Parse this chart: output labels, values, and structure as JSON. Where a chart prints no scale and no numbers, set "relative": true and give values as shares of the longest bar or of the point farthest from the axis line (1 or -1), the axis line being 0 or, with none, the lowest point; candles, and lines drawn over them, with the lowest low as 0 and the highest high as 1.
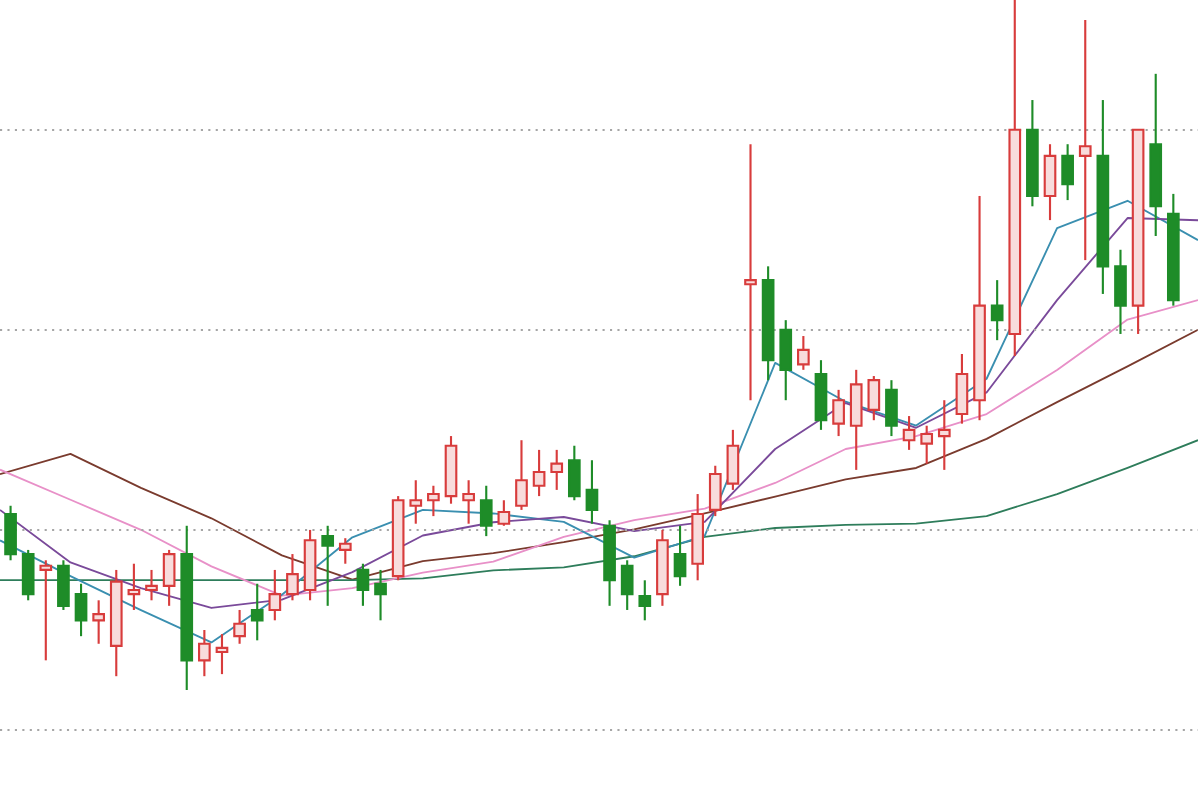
{
  "chart_data": [
    {
      "type": "candlestick",
      "relative": true,
      "grid": "y",
      "categories": [
        null,
        null,
        null,
        null,
        null,
        null,
        null,
        null,
        null,
        null,
        null,
        null,
        null,
        null,
        null,
        null,
        null,
        null,
        null,
        null,
        null,
        null,
        null,
        null,
        null,
        null,
        null,
        null,
        null,
        null,
        null,
        null,
        null,
        null,
        null,
        null,
        null,
        null,
        null,
        null,
        null,
        null,
        null,
        null,
        null,
        null,
        null,
        null,
        null,
        null,
        null,
        null,
        null,
        null,
        null,
        null,
        null,
        null,
        null,
        null,
        null,
        null,
        null,
        null,
        null,
        null,
        null
      ],
      "ohlc": [
        [
          0.255,
          0.267,
          0.188,
          0.197
        ],
        [
          0.197,
          0.203,
          0.13,
          0.139
        ],
        [
          0.174,
          0.188,
          0.043,
          0.18
        ],
        [
          0.18,
          0.188,
          0.116,
          0.122
        ],
        [
          0.139,
          0.154,
          0.078,
          0.101
        ],
        [
          0.101,
          0.13,
          0.067,
          0.11
        ],
        [
          0.064,
          0.174,
          0.02,
          0.157
        ],
        [
          0.139,
          0.183,
          0.116,
          0.145
        ],
        [
          0.145,
          0.174,
          0.13,
          0.151
        ],
        [
          0.151,
          0.203,
          0.122,
          0.197
        ],
        [
          0.197,
          0.238,
          0,
          0.043
        ],
        [
          0.043,
          0.087,
          0.02,
          0.067
        ],
        [
          0.055,
          0.081,
          0.023,
          0.061
        ],
        [
          0.078,
          0.116,
          0.067,
          0.096
        ],
        [
          0.116,
          0.154,
          0.072,
          0.101
        ],
        [
          0.116,
          0.174,
          0.101,
          0.139
        ],
        [
          0.139,
          0.197,
          0.13,
          0.168
        ],
        [
          0.145,
          0.232,
          0.13,
          0.217
        ],
        [
          0.223,
          0.238,
          0.122,
          0.209
        ],
        [
          0.203,
          0.22,
          0.183,
          0.212
        ],
        [
          0.174,
          0.183,
          0.122,
          0.145
        ],
        [
          0.154,
          0.174,
          0.101,
          0.139
        ],
        [
          0.165,
          0.281,
          0.159,
          0.275
        ],
        [
          0.267,
          0.304,
          0.241,
          0.275
        ],
        [
          0.275,
          0.296,
          0.252,
          0.284
        ],
        [
          0.281,
          0.368,
          0.27,
          0.354
        ],
        [
          0.275,
          0.304,
          0.241,
          0.284
        ],
        [
          0.275,
          0.296,
          0.223,
          0.238
        ],
        [
          0.241,
          0.275,
          0.238,
          0.258
        ],
        [
          0.267,
          0.362,
          0.261,
          0.304
        ],
        [
          0.296,
          0.348,
          0.281,
          0.316
        ],
        [
          0.316,
          0.348,
          0.29,
          0.328
        ],
        [
          0.333,
          0.354,
          0.275,
          0.281
        ],
        [
          0.29,
          0.333,
          0.241,
          0.261
        ],
        [
          0.238,
          0.246,
          0.122,
          0.159
        ],
        [
          0.18,
          0.188,
          0.116,
          0.139
        ],
        [
          0.136,
          0.159,
          0.101,
          0.122
        ],
        [
          0.139,
          0.232,
          0.122,
          0.217
        ],
        [
          0.197,
          0.238,
          0.151,
          0.165
        ],
        [
          0.183,
          0.284,
          0.159,
          0.255
        ],
        [
          0.261,
          0.325,
          0.252,
          0.313
        ],
        [
          0.299,
          0.377,
          0.29,
          0.354
        ],
        [
          0.588,
          0.791,
          0.42,
          0.594
        ],
        [
          0.594,
          0.614,
          0.449,
          0.478
        ],
        [
          0.522,
          0.536,
          0.42,
          0.464
        ],
        [
          0.472,
          0.513,
          0.464,
          0.493
        ],
        [
          0.458,
          0.478,
          0.377,
          0.391
        ],
        [
          0.386,
          0.435,
          0.368,
          0.42
        ],
        [
          0.383,
          0.464,
          0.319,
          0.443
        ],
        [
          0.406,
          0.455,
          0.391,
          0.449
        ],
        [
          0.435,
          0.449,
          0.368,
          0.383
        ],
        [
          0.362,
          0.397,
          0.348,
          0.377
        ],
        [
          0.357,
          0.383,
          0.328,
          0.371
        ],
        [
          0.368,
          0.42,
          0.319,
          0.377
        ],
        [
          0.4,
          0.487,
          0.386,
          0.458
        ],
        [
          0.42,
          0.716,
          0.391,
          0.557
        ],
        [
          0.557,
          0.594,
          0.507,
          0.536
        ],
        [
          0.516,
          1,
          0.484,
          0.812
        ],
        [
          0.812,
          0.855,
          0.701,
          0.716
        ],
        [
          0.716,
          0.791,
          0.681,
          0.774
        ],
        [
          0.774,
          0.791,
          0.71,
          0.733
        ],
        [
          0.774,
          0.971,
          0.623,
          0.788
        ],
        [
          0.774,
          0.855,
          0.574,
          0.614
        ],
        [
          0.614,
          0.638,
          0.516,
          0.557
        ],
        [
          0.557,
          0.812,
          0.516,
          0.812
        ],
        [
          0.791,
          0.893,
          0.658,
          0.701
        ],
        [
          0.69,
          0.719,
          0.557,
          0.565
        ]
      ],
      "colors": [
        "#1e8c28",
        "#1e8c28",
        "#d83c3c",
        "#1e8c28",
        "#1e8c28",
        "#d83c3c",
        "#d83c3c",
        "#d83c3c",
        "#d83c3c",
        "#d83c3c",
        "#1e8c28",
        "#d83c3c",
        "#d83c3c",
        "#d83c3c",
        "#1e8c28",
        "#d83c3c",
        "#d83c3c",
        "#d83c3c",
        "#1e8c28",
        "#d83c3c",
        "#1e8c28",
        "#1e8c28",
        "#d83c3c",
        "#d83c3c",
        "#d83c3c",
        "#d83c3c",
        "#d83c3c",
        "#1e8c28",
        "#d83c3c",
        "#d83c3c",
        "#d83c3c",
        "#d83c3c",
        "#1e8c28",
        "#1e8c28",
        "#1e8c28",
        "#1e8c28",
        "#1e8c28",
        "#d83c3c",
        "#1e8c28",
        "#d83c3c",
        "#d83c3c",
        "#d83c3c",
        "#d83c3c",
        "#1e8c28",
        "#1e8c28",
        "#d83c3c",
        "#1e8c28",
        "#d83c3c",
        "#d83c3c",
        "#d83c3c",
        "#1e8c28",
        "#d83c3c",
        "#d83c3c",
        "#d83c3c",
        "#d83c3c",
        "#d83c3c",
        "#1e8c28",
        "#d83c3c",
        "#1e8c28",
        "#d83c3c",
        "#1e8c28",
        "#d83c3c",
        "#1e8c28",
        "#1e8c28",
        "#d83c3c",
        "#1e8c28",
        "#1e8c28"
      ]
    },
    {
      "type": "line",
      "relative": true,
      "categories": [
        null,
        null,
        null,
        null,
        null,
        null,
        null,
        null,
        null,
        null,
        null,
        null,
        null,
        null,
        null,
        null,
        null,
        null
      ],
      "series": [
        {
          "color": "#7a3b2e",
          "values": [
            0.381,
            0.427,
            0.35,
            0.281,
            0.197,
            0.142,
            0.184,
            0.202,
            0.227,
            0.256,
            0.292,
            0.33,
            0.369,
            0.395,
            0.461,
            0.544,
            0.625,
            0.708
          ]
        },
        {
          "color": "#2e7d5b",
          "values": [
            0.141,
            0.141,
            0.141,
            0.141,
            0.141,
            0.141,
            0.145,
            0.163,
            0.17,
            0.195,
            0.239,
            0.259,
            0.266,
            0.269,
            0.286,
            0.336,
            0.395,
            0.458
          ]
        },
        {
          "color": "#e890c8",
          "values": [
            0.391,
            0.323,
            0.255,
            0.172,
            0.106,
            0.123,
            0.158,
            0.183,
            0.239,
            0.277,
            0.303,
            0.361,
            0.438,
            0.467,
            0.517,
            0.617,
            0.731,
            0.775
          ]
        },
        {
          "color": "#3a8fb0",
          "values": [
            0.231,
            0.15,
            0.073,
            0,
            0.108,
            0.238,
            0.3,
            0.292,
            0.273,
            0.192,
            0.241,
            0.633,
            0.545,
            0.491,
            0.597,
            0.938,
            1,
            0.911
          ]
        },
        {
          "color": "#7a4a9a",
          "values": [
            0.3,
            0.181,
            0.123,
            0.078,
            0.097,
            0.159,
            0.242,
            0.272,
            0.284,
            0.252,
            0.273,
            0.438,
            0.542,
            0.486,
            0.566,
            0.775,
            0.961,
            0.956
          ]
        }
      ]
    }
  ]
}
